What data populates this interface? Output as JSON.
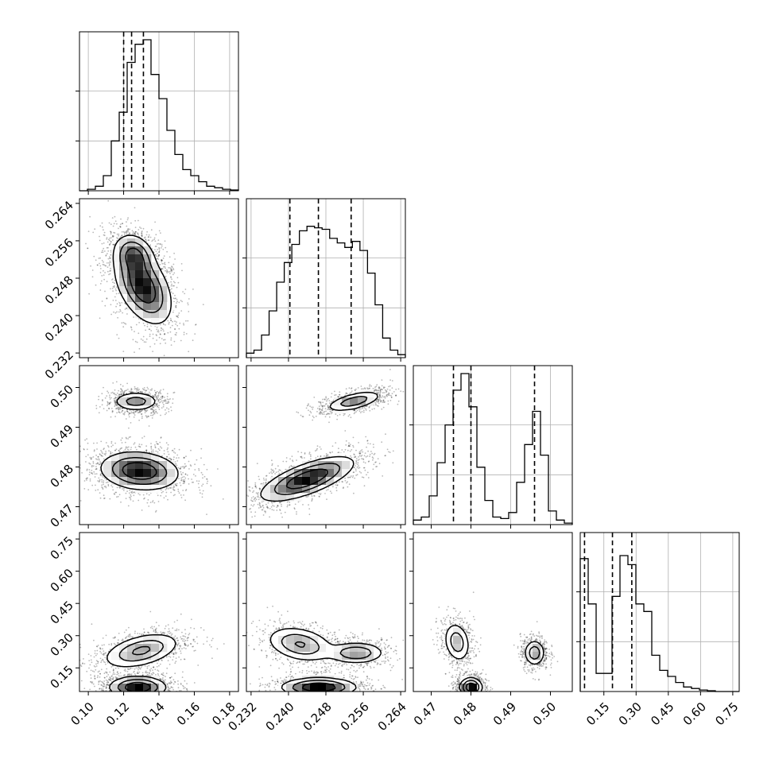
{
  "chart_data": {
    "type": "corner",
    "parameters": [
      {
        "range": [
          0.095,
          0.185
        ],
        "ticks": [
          "0.10",
          "0.12",
          "0.14",
          "0.16",
          "0.18"
        ],
        "hist": [
          0.0,
          0.01,
          0.03,
          0.1,
          0.33,
          0.52,
          0.85,
          0.97,
          1.0,
          0.77,
          0.61,
          0.4,
          0.24,
          0.14,
          0.1,
          0.06,
          0.03,
          0.02,
          0.01,
          0.005
        ],
        "quantiles": [
          0.12,
          0.1245,
          0.1312
        ]
      },
      {
        "range": [
          0.231,
          0.265
        ],
        "ticks": [
          "0.232",
          "0.240",
          "0.248",
          "0.256",
          "0.264"
        ],
        "hist": [
          0.03,
          0.05,
          0.15,
          0.31,
          0.5,
          0.63,
          0.75,
          0.84,
          0.87,
          0.86,
          0.85,
          0.79,
          0.76,
          0.73,
          0.77,
          0.71,
          0.56,
          0.35,
          0.13,
          0.05,
          0.02
        ],
        "quantiles": [
          0.2403,
          0.2464,
          0.2534
        ]
      },
      {
        "range": [
          0.4655,
          0.5055
        ],
        "ticks": [
          "0.47",
          "0.48",
          "0.49",
          "0.50"
        ],
        "hist": [
          0.03,
          0.05,
          0.19,
          0.41,
          0.66,
          0.89,
          1.0,
          0.78,
          0.38,
          0.16,
          0.05,
          0.04,
          0.08,
          0.28,
          0.53,
          0.75,
          0.46,
          0.09,
          0.03,
          0.01
        ],
        "quantiles": [
          0.4756,
          0.48,
          0.496
        ]
      },
      {
        "range": [
          0.04,
          0.78
        ],
        "ticks": [
          "0.15",
          "0.30",
          "0.45",
          "0.60",
          "0.75"
        ],
        "hist": [
          0.88,
          0.58,
          0.12,
          0.12,
          0.63,
          0.9,
          0.84,
          0.58,
          0.53,
          0.24,
          0.14,
          0.1,
          0.06,
          0.03,
          0.02,
          0.01,
          0.005,
          0.0,
          0.0,
          0.0
        ],
        "quantiles": [
          0.06,
          0.19,
          0.28
        ]
      }
    ],
    "pairs": [
      {
        "row": 1,
        "col": 0,
        "modes": [
          {
            "center": [
              0.131,
              0.2462
            ],
            "sigma": [
              0.008,
              0.004
            ],
            "rho": -0.45,
            "weight": 1.0,
            "inner": 1.0
          },
          {
            "center": [
              0.126,
              0.253
            ],
            "sigma": [
              0.0055,
              0.0022
            ],
            "rho": -0.2,
            "weight": 0.7,
            "inner": 0.9
          }
        ]
      },
      {
        "row": 2,
        "col": 0,
        "modes": [
          {
            "center": [
              0.129,
              0.479
            ],
            "sigma": [
              0.011,
              0.0024
            ],
            "rho": -0.15,
            "weight": 1.0,
            "inner": 1.0
          },
          {
            "center": [
              0.127,
              0.4965
            ],
            "sigma": [
              0.0065,
              0.0012
            ],
            "rho": 0.0,
            "weight": 0.55,
            "inner": 0.95
          }
        ]
      },
      {
        "row": 2,
        "col": 1,
        "modes": [
          {
            "center": [
              0.244,
              0.477
            ],
            "sigma": [
              0.005,
              0.0028
            ],
            "rho": 0.7,
            "weight": 1.0,
            "inner": 1.0
          },
          {
            "center": [
              0.254,
              0.4965
            ],
            "sigma": [
              0.003,
              0.0013
            ],
            "rho": 0.6,
            "weight": 0.6,
            "inner": 0.9
          }
        ]
      },
      {
        "row": 3,
        "col": 0,
        "modes": [
          {
            "center": [
              0.13,
              0.23
            ],
            "sigma": [
              0.0105,
              0.04
            ],
            "rho": 0.45,
            "weight": 0.75,
            "inner": 0.6
          },
          {
            "center": [
              0.128,
              0.06
            ],
            "sigma": [
              0.008,
              0.025
            ],
            "rho": 0.0,
            "weight": 1.0,
            "inner": 1.0
          }
        ]
      },
      {
        "row": 3,
        "col": 1,
        "modes": [
          {
            "center": [
              0.2425,
              0.26
            ],
            "sigma": [
              0.0035,
              0.04
            ],
            "rho": -0.3,
            "weight": 0.7,
            "inner": 0.6
          },
          {
            "center": [
              0.2545,
              0.22
            ],
            "sigma": [
              0.003,
              0.025
            ],
            "rho": 0.0,
            "weight": 0.65,
            "inner": 0.8
          },
          {
            "center": [
              0.2465,
              0.06
            ],
            "sigma": [
              0.004,
              0.022
            ],
            "rho": 0.0,
            "weight": 1.0,
            "inner": 1.0
          }
        ]
      },
      {
        "row": 3,
        "col": 2,
        "modes": [
          {
            "center": [
              0.4765,
              0.27
            ],
            "sigma": [
              0.0016,
              0.045
            ],
            "rho": -0.2,
            "weight": 0.6,
            "inner": 0.6
          },
          {
            "center": [
              0.48,
              0.06
            ],
            "sigma": [
              0.0014,
              0.022
            ],
            "rho": 0.0,
            "weight": 1.0,
            "inner": 1.0
          },
          {
            "center": [
              0.496,
              0.22
            ],
            "sigma": [
              0.0013,
              0.03
            ],
            "rho": 0.0,
            "weight": 0.6,
            "inner": 0.8
          }
        ]
      }
    ],
    "grid": true,
    "title": "",
    "xlabel": "",
    "ylabel": ""
  },
  "colors": {
    "ink": "#000000",
    "grid": "#b0b0b0",
    "background": "#ffffff"
  }
}
